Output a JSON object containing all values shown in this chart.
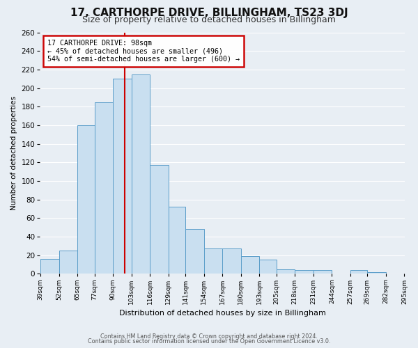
{
  "title": "17, CARTHORPE DRIVE, BILLINGHAM, TS23 3DJ",
  "subtitle": "Size of property relative to detached houses in Billingham",
  "xlabel": "Distribution of detached houses by size in Billingham",
  "ylabel": "Number of detached properties",
  "footer1": "Contains HM Land Registry data © Crown copyright and database right 2024.",
  "footer2": "Contains public sector information licensed under the Open Government Licence v3.0.",
  "annotation_line1": "17 CARTHORPE DRIVE: 98sqm",
  "annotation_line2": "← 45% of detached houses are smaller (496)",
  "annotation_line3": "54% of semi-detached houses are larger (600) →",
  "bar_edges": [
    39,
    52,
    65,
    77,
    90,
    103,
    116,
    129,
    141,
    154,
    167,
    180,
    193,
    205,
    218,
    231,
    244,
    257,
    269,
    282,
    295
  ],
  "bar_heights": [
    16,
    25,
    160,
    185,
    210,
    215,
    117,
    72,
    48,
    27,
    27,
    19,
    15,
    5,
    4,
    4,
    0,
    4,
    2,
    0
  ],
  "bar_face_color": "#c9dff0",
  "bar_edge_color": "#5b9dc9",
  "vline_color": "#cc0000",
  "vline_x": 98,
  "ylim": [
    0,
    260
  ],
  "yticks": [
    0,
    20,
    40,
    60,
    80,
    100,
    120,
    140,
    160,
    180,
    200,
    220,
    240,
    260
  ],
  "bg_color": "#e8eef4",
  "plot_bg_color": "#e8eef4",
  "grid_color": "#ffffff",
  "xlabels": [
    "39sqm",
    "52sqm",
    "65sqm",
    "77sqm",
    "90sqm",
    "103sqm",
    "116sqm",
    "129sqm",
    "141sqm",
    "154sqm",
    "167sqm",
    "180sqm",
    "193sqm",
    "205sqm",
    "218sqm",
    "231sqm",
    "244sqm",
    "257sqm",
    "269sqm",
    "282sqm",
    "295sqm"
  ],
  "box_color": "#cc0000",
  "title_fontsize": 11,
  "subtitle_fontsize": 9
}
